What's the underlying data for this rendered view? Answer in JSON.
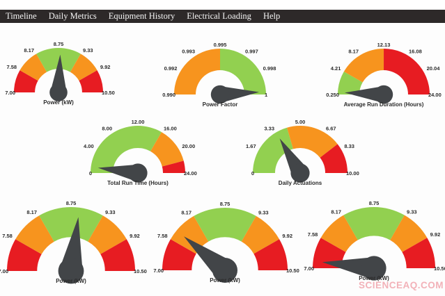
{
  "menu": {
    "items": [
      "Timeline",
      "Daily Metrics",
      "Equipment History",
      "Electrical Loading",
      "Help"
    ]
  },
  "watermark": {
    "text": "SCIENCEAQ.COM",
    "color": "#e97280"
  },
  "colors": {
    "green": "#92d050",
    "orange": "#f7941e",
    "red": "#e71c22",
    "needle": "#424548",
    "menubar_bg": "#2d2929",
    "menubar_text": "#f4f4f4",
    "tick_text": "#2b2b2b"
  },
  "chart_data": {
    "type": "gauge-dashboard",
    "note": "see gauges array"
  },
  "gauges": [
    {
      "title": "Power (kW)",
      "min": 7.0,
      "max": 10.5,
      "value": 8.8,
      "ticks": [
        "7.00",
        "7.58",
        "8.17",
        "8.75",
        "9.33",
        "9.92",
        "10.50"
      ],
      "segments": [
        {
          "from": 7.0,
          "to": 7.58,
          "color": "red"
        },
        {
          "from": 7.58,
          "to": 8.17,
          "color": "orange"
        },
        {
          "from": 8.17,
          "to": 9.33,
          "color": "green"
        },
        {
          "from": 9.33,
          "to": 9.92,
          "color": "orange"
        },
        {
          "from": 9.92,
          "to": 10.5,
          "color": "red"
        }
      ]
    },
    {
      "title": "Power Factor",
      "min": 0.99,
      "max": 1.0,
      "value": 0.9998,
      "ticks": [
        "0.990",
        "0.992",
        "0.993",
        "0.995",
        "0.997",
        "0.998",
        "1"
      ],
      "segments": [
        {
          "from": 0.99,
          "to": 0.995,
          "color": "orange"
        },
        {
          "from": 0.995,
          "to": 1.0,
          "color": "green"
        }
      ]
    },
    {
      "title": "Average Run Duration (Hours)",
      "min": 0.25,
      "max": 24.0,
      "value": 0.6,
      "ticks": [
        "0.250",
        "4.21",
        "8.17",
        "12.13",
        "16.08",
        "20.04",
        "24.00"
      ],
      "segments": [
        {
          "from": 0.25,
          "to": 4.21,
          "color": "green"
        },
        {
          "from": 4.21,
          "to": 12.13,
          "color": "orange"
        },
        {
          "from": 12.13,
          "to": 24.0,
          "color": "red"
        }
      ]
    },
    {
      "title": "Total Run Time (Hours)",
      "min": 0,
      "max": 24,
      "value": 1.0,
      "ticks": [
        "0",
        "4.00",
        "8.00",
        "12.00",
        "16.00",
        "20.00",
        "24.00"
      ],
      "segments": [
        {
          "from": 0,
          "to": 16,
          "color": "green"
        },
        {
          "from": 16,
          "to": 22,
          "color": "orange"
        },
        {
          "from": 22,
          "to": 24,
          "color": "red"
        }
      ]
    },
    {
      "title": "Daily Actuations",
      "min": 0,
      "max": 10,
      "value": 3.3,
      "ticks": [
        "0",
        "1.67",
        "3.33",
        "5.00",
        "6.67",
        "8.33",
        "10.00"
      ],
      "segments": [
        {
          "from": 0,
          "to": 4.1,
          "color": "green"
        },
        {
          "from": 4.1,
          "to": 7.9,
          "color": "orange"
        },
        {
          "from": 7.9,
          "to": 10,
          "color": "red"
        }
      ]
    },
    {
      "title": "Power (kW)",
      "min": 7.0,
      "max": 10.5,
      "value": 8.9,
      "ticks": [
        "7.00",
        "7.58",
        "8.17",
        "8.75",
        "9.33",
        "9.92",
        "10.50"
      ],
      "segments": [
        {
          "from": 7.0,
          "to": 7.58,
          "color": "red"
        },
        {
          "from": 7.58,
          "to": 8.17,
          "color": "orange"
        },
        {
          "from": 8.17,
          "to": 9.33,
          "color": "green"
        },
        {
          "from": 9.33,
          "to": 9.92,
          "color": "orange"
        },
        {
          "from": 9.92,
          "to": 10.5,
          "color": "red"
        }
      ]
    },
    {
      "title": "Power (kW)",
      "min": 7.0,
      "max": 10.5,
      "value": 7.77,
      "ticks": [
        "7.00",
        "7.58",
        "8.17",
        "8.75",
        "9.33",
        "9.92",
        "10.50"
      ],
      "segments": [
        {
          "from": 7.0,
          "to": 7.58,
          "color": "red"
        },
        {
          "from": 7.58,
          "to": 8.17,
          "color": "orange"
        },
        {
          "from": 8.17,
          "to": 9.33,
          "color": "green"
        },
        {
          "from": 9.33,
          "to": 9.92,
          "color": "orange"
        },
        {
          "from": 9.92,
          "to": 10.5,
          "color": "red"
        }
      ]
    },
    {
      "title": "Power (kW)",
      "min": 7.0,
      "max": 10.5,
      "value": 7.13,
      "ticks": [
        "7.00",
        "7.58",
        "8.17",
        "8.75",
        "9.33",
        "9.92",
        "10.50"
      ],
      "segments": [
        {
          "from": 7.0,
          "to": 7.58,
          "color": "red"
        },
        {
          "from": 7.58,
          "to": 8.17,
          "color": "orange"
        },
        {
          "from": 8.17,
          "to": 9.33,
          "color": "green"
        },
        {
          "from": 9.33,
          "to": 9.92,
          "color": "orange"
        },
        {
          "from": 9.92,
          "to": 10.5,
          "color": "red"
        }
      ]
    }
  ]
}
